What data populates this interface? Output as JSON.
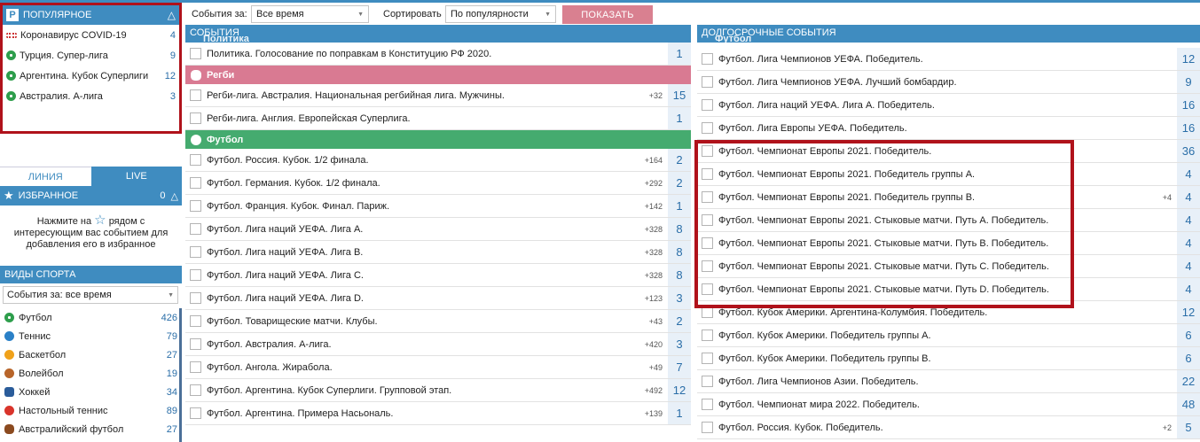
{
  "popular": {
    "logo": "P",
    "title": "ПОПУЛЯРНОЕ",
    "items": [
      {
        "icon": "covid-icon",
        "label": "Коронавирус COVID-19",
        "count": "4"
      },
      {
        "icon": "soccer-ball-icon",
        "label": "Турция. Супер-лига",
        "count": "9"
      },
      {
        "icon": "soccer-ball-icon",
        "label": "Аргентина. Кубок Суперлиги",
        "count": "12"
      },
      {
        "icon": "soccer-ball-icon",
        "label": "Австралия. А-лига",
        "count": "3"
      }
    ]
  },
  "mode_tabs": {
    "line": "ЛИНИЯ",
    "live": "LIVE"
  },
  "favorites": {
    "title": "ИЗБРАННОЕ",
    "count": "0",
    "hint_before": "Нажмите на",
    "hint_after": "рядом с интересующим вас событием для добавления его в избранное"
  },
  "sports": {
    "title": "ВИДЫ СПОРТА",
    "filter_value": "События за: все время",
    "items": [
      {
        "icon": "soccer-ball-icon",
        "label": "Футбол",
        "count": "426"
      },
      {
        "icon": "tennis-ball-icon",
        "label": "Теннис",
        "count": "79"
      },
      {
        "icon": "basketball-icon",
        "label": "Баскетбол",
        "count": "27"
      },
      {
        "icon": "volleyball-icon",
        "label": "Волейбол",
        "count": "19"
      },
      {
        "icon": "hockey-puck-icon",
        "label": "Хоккей",
        "count": "34"
      },
      {
        "icon": "table-tennis-icon",
        "label": "Настольный теннис",
        "count": "89"
      },
      {
        "icon": "australian-football-icon",
        "label": "Австралийский футбол",
        "count": "27"
      }
    ]
  },
  "filters": {
    "events_label": "События за:",
    "events_value": "Все время",
    "sort_label": "Сортировать",
    "sort_value": "По популярности",
    "show_button": "ПОКАЗАТЬ"
  },
  "events": {
    "title": "СОБЫТИЯ",
    "under_title": "Политика",
    "politics": [
      {
        "name": "Политика. Голосование по поправкам в Конституцию РФ 2020.",
        "extra": "",
        "count": "1"
      }
    ],
    "rugby_label": "Регби",
    "rugby": [
      {
        "name": "Регби-лига. Австралия. Национальная регбийная лига. Мужчины.",
        "extra": "+32",
        "count": "15"
      },
      {
        "name": "Регби-лига. Англия. Европейская Суперлига.",
        "extra": "",
        "count": "1"
      }
    ],
    "football_label": "Футбол",
    "football": [
      {
        "name": "Футбол. Россия. Кубок. 1/2 финала.",
        "extra": "+164",
        "count": "2"
      },
      {
        "name": "Футбол. Германия. Кубок. 1/2 финала.",
        "extra": "+292",
        "count": "2"
      },
      {
        "name": "Футбол. Франция. Кубок. Финал. Париж.",
        "extra": "+142",
        "count": "1"
      },
      {
        "name": "Футбол. Лига наций УЕФА. Лига A.",
        "extra": "+328",
        "count": "8"
      },
      {
        "name": "Футбол. Лига наций УЕФА. Лига B.",
        "extra": "+328",
        "count": "8"
      },
      {
        "name": "Футбол. Лига наций УЕФА. Лига C.",
        "extra": "+328",
        "count": "8"
      },
      {
        "name": "Футбол. Лига наций УЕФА. Лига D.",
        "extra": "+123",
        "count": "3"
      },
      {
        "name": "Футбол. Товарищеские матчи. Клубы.",
        "extra": "+43",
        "count": "2"
      },
      {
        "name": "Футбол. Австралия. А-лига.",
        "extra": "+420",
        "count": "3"
      },
      {
        "name": "Футбол. Ангола. Жирабола.",
        "extra": "+49",
        "count": "7"
      },
      {
        "name": "Футбол. Аргентина. Кубок Суперлиги. Групповой этап.",
        "extra": "+492",
        "count": "12"
      },
      {
        "name": "Футбол. Аргентина. Примера Насьональ.",
        "extra": "+139",
        "count": "1"
      }
    ]
  },
  "longterm": {
    "title": "ДОЛГОСРОЧНЫЕ СОБЫТИЯ",
    "under_title": "Футбол",
    "rows": [
      {
        "name": "Футбол. Лига Чемпионов УЕФА. Победитель.",
        "extra": "",
        "count": "12"
      },
      {
        "name": "Футбол. Лига Чемпионов УЕФА. Лучший бомбардир.",
        "extra": "",
        "count": "9"
      },
      {
        "name": "Футбол. Лига наций УЕФА. Лига A. Победитель.",
        "extra": "",
        "count": "16"
      },
      {
        "name": "Футбол. Лига Европы УЕФА. Победитель.",
        "extra": "",
        "count": "16"
      },
      {
        "name": "Футбол. Чемпионат Европы 2021. Победитель.",
        "extra": "",
        "count": "36"
      },
      {
        "name": "Футбол. Чемпионат Европы 2021. Победитель группы A.",
        "extra": "",
        "count": "4"
      },
      {
        "name": "Футбол. Чемпионат Европы 2021. Победитель группы B.",
        "extra": "+4",
        "count": "4"
      },
      {
        "name": "Футбол. Чемпионат Европы 2021. Стыковые матчи. Путь A. Победитель.",
        "extra": "",
        "count": "4"
      },
      {
        "name": "Футбол. Чемпионат Европы 2021. Стыковые матчи. Путь B. Победитель.",
        "extra": "",
        "count": "4"
      },
      {
        "name": "Футбол. Чемпионат Европы 2021. Стыковые матчи. Путь C. Победитель.",
        "extra": "",
        "count": "4"
      },
      {
        "name": "Футбол. Чемпионат Европы 2021. Стыковые матчи. Путь D. Победитель.",
        "extra": "",
        "count": "4"
      },
      {
        "name": "Футбол. Кубок Америки. Аргентина-Колумбия. Победитель.",
        "extra": "",
        "count": "12"
      },
      {
        "name": "Футбол. Кубок Америки. Победитель группы A.",
        "extra": "",
        "count": "6"
      },
      {
        "name": "Футбол. Кубок Америки. Победитель группы B.",
        "extra": "",
        "count": "6"
      },
      {
        "name": "Футбол. Лига Чемпионов Азии. Победитель.",
        "extra": "",
        "count": "22"
      },
      {
        "name": "Футбол. Чемпионат мира 2022. Победитель.",
        "extra": "",
        "count": "48"
      },
      {
        "name": "Футбол. Россия. Кубок. Победитель.",
        "extra": "+2",
        "count": "5"
      }
    ]
  }
}
